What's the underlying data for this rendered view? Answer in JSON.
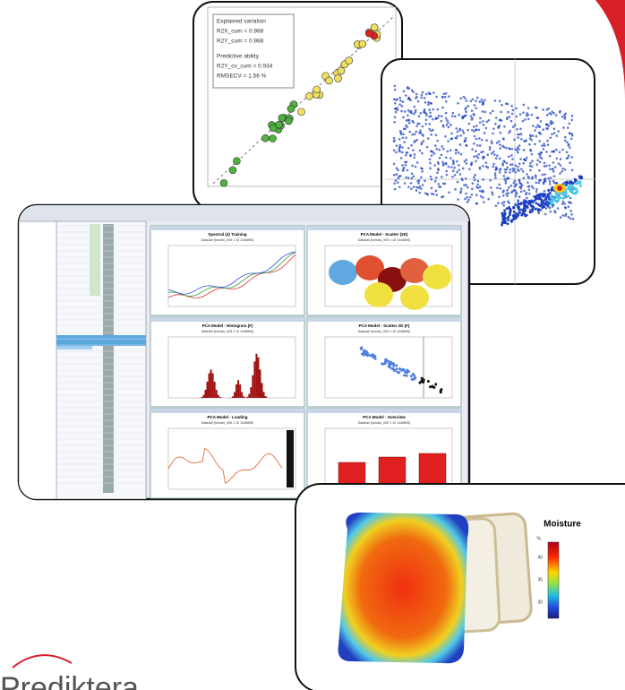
{
  "scatter_card": {
    "legend": [
      "Explained variation",
      "R2X_cum = 0.988",
      "R2Y_cum = 0.988",
      "Predictive ability",
      "R2Y_cv_cum = 0.934",
      "RMSECV = 1.56 %"
    ]
  },
  "software": {
    "panels": [
      {
        "title": "Spectral (4) Training",
        "subtitle": "Data4all (tomato_005 1 10 1448895)"
      },
      {
        "title": "PCA Model - Scatter (2D)",
        "subtitle": "Data4all (tomato_005 1 10 1448895)"
      },
      {
        "title": "PCA Model - Histogram (F)",
        "subtitle": "Data4all (tomato_005 1 10 1448895)"
      },
      {
        "title": "PCA Model - Scatter 2D (F)",
        "subtitle": "Data4all (tomato_005 1 10 1448895)"
      },
      {
        "title": "PCA Model - Loading",
        "subtitle": "Data4all (tomato_005 1 10 1448895)"
      },
      {
        "title": "PCA Model - Overview",
        "subtitle": "Data4all (tomato_005 1 10 1448895)"
      }
    ]
  },
  "moisture": {
    "title": "Moisture",
    "unit": "%",
    "ticks": [
      "40",
      "35",
      "30"
    ]
  },
  "logo": "Prediktera"
}
